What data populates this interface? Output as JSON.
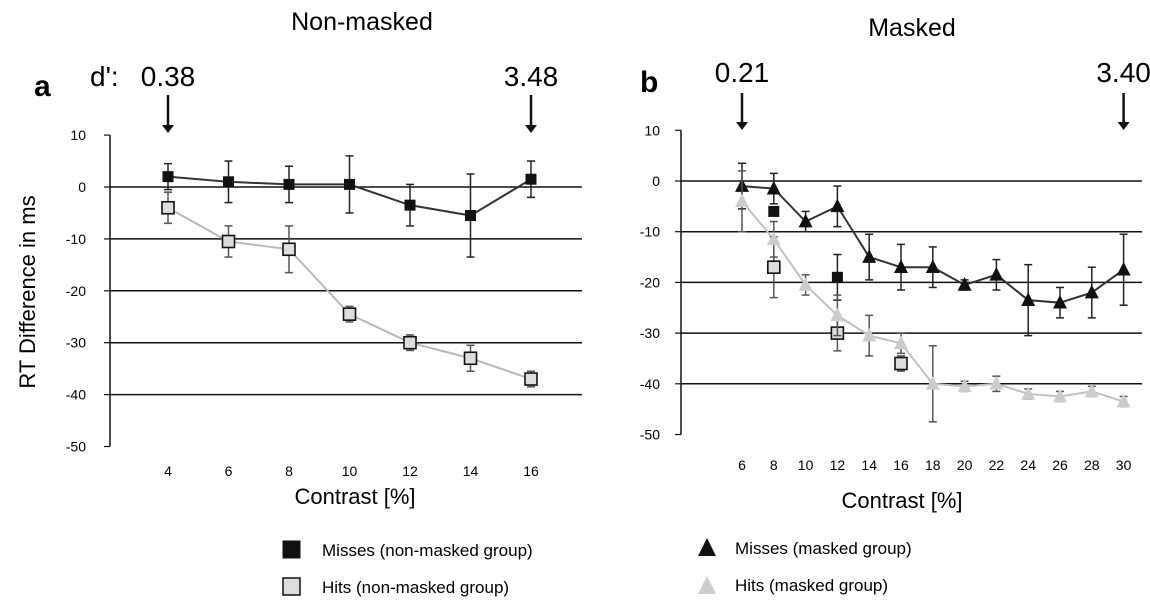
{
  "chart_data": [
    {
      "type": "line",
      "panel_label": "a",
      "title": "Non-masked",
      "xlabel": "Contrast [%]",
      "ylabel": "RT Difference in ms",
      "ylim": [
        -50,
        10
      ],
      "yticks": [
        10,
        0,
        -10,
        -20,
        -30,
        -40,
        -50
      ],
      "gridlines": [
        0,
        -10,
        -20,
        -30,
        -40
      ],
      "x": [
        4,
        6,
        8,
        10,
        12,
        14,
        16
      ],
      "dprime_prefix": "d':",
      "dprime": [
        {
          "x": 4,
          "label": "0.38"
        },
        {
          "x": 16,
          "label": "3.48"
        }
      ],
      "series": [
        {
          "name": "Misses (non-masked group)",
          "marker": "square",
          "fill": "#111111",
          "line": "#333333",
          "values": [
            2,
            1,
            0.5,
            0.5,
            -3.5,
            -5.5,
            1.5
          ],
          "err": [
            2.5,
            4,
            3.5,
            5.5,
            4,
            8,
            3.5
          ]
        },
        {
          "name": "Hits (non-masked group)",
          "marker": "square",
          "fill": "#dddddd",
          "line": "#b8b8b8",
          "values": [
            -4,
            -10.5,
            -12,
            -24.5,
            -30,
            -33,
            -37
          ],
          "err": [
            3,
            3,
            4.5,
            1.5,
            1.5,
            2.5,
            1.5
          ]
        }
      ]
    },
    {
      "type": "line",
      "panel_label": "b",
      "title": "Masked",
      "xlabel": "Contrast [%]",
      "ylabel": "",
      "ylim": [
        -50,
        10
      ],
      "yticks": [
        10,
        0,
        -10,
        -20,
        -30,
        -40,
        -50
      ],
      "gridlines": [
        0,
        -10,
        -20,
        -30,
        -40
      ],
      "x": [
        6,
        8,
        10,
        12,
        14,
        16,
        18,
        20,
        22,
        24,
        26,
        28,
        30
      ],
      "dprime": [
        {
          "x": 6,
          "label": "0.21"
        },
        {
          "x": 30,
          "label": "3.40"
        }
      ],
      "series": [
        {
          "name": "Misses (non-masked group)",
          "marker": "square",
          "fill": "#111111",
          "line": "none",
          "points": [
            {
              "x": 8,
              "y": -6
            },
            {
              "x": 12,
              "y": -19
            }
          ],
          "err": [
            0,
            4.5
          ]
        },
        {
          "name": "Hits (non-masked group)",
          "marker": "square",
          "fill": "#dddddd",
          "line": "none",
          "points": [
            {
              "x": 8,
              "y": -17
            },
            {
              "x": 12,
              "y": -30
            },
            {
              "x": 16,
              "y": -36
            }
          ],
          "err": [
            6,
            3.5,
            1.5
          ]
        },
        {
          "name": "Misses (masked group)",
          "marker": "triangle",
          "fill": "#111111",
          "line": "#333333",
          "values": [
            -1,
            -1.5,
            -8,
            -5,
            -15,
            -17,
            -17,
            -20.5,
            -18.5,
            -23.5,
            -24,
            -22,
            -17.5
          ],
          "err": [
            4.5,
            3,
            2,
            4,
            4.5,
            4.5,
            4,
            1,
            3,
            7,
            3,
            5,
            7
          ]
        },
        {
          "name": "Hits (masked group)",
          "marker": "triangle",
          "fill": "#cccccc",
          "line": "#c0c0c0",
          "values": [
            -4,
            -11.5,
            -20.5,
            -26.5,
            -30.5,
            -32,
            -40,
            -40.5,
            -40,
            -42,
            -42.5,
            -41.5,
            -43.5
          ],
          "err": [
            6,
            3.5,
            2,
            4,
            4,
            2,
            7.5,
            1,
            1.5,
            1,
            1,
            1,
            1
          ]
        }
      ]
    }
  ],
  "legend": [
    {
      "label": "Misses (non-masked group)",
      "marker": "square",
      "fill": "#111111"
    },
    {
      "label": "Hits (non-masked group)",
      "marker": "square",
      "fill": "#dddddd"
    },
    {
      "label": "Misses (masked group)",
      "marker": "triangle",
      "fill": "#111111"
    },
    {
      "label": "Hits (masked group)",
      "marker": "triangle",
      "fill": "#cccccc"
    }
  ]
}
